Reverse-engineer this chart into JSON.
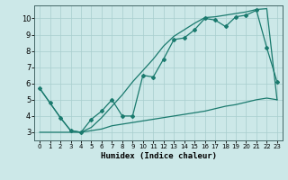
{
  "xlabel": "Humidex (Indice chaleur)",
  "xlim": [
    -0.5,
    23.5
  ],
  "ylim": [
    2.5,
    10.8
  ],
  "xticks": [
    0,
    1,
    2,
    3,
    4,
    5,
    6,
    7,
    8,
    9,
    10,
    11,
    12,
    13,
    14,
    15,
    16,
    17,
    18,
    19,
    20,
    21,
    22,
    23
  ],
  "yticks": [
    3,
    4,
    5,
    6,
    7,
    8,
    9,
    10
  ],
  "bg_color": "#cce8e8",
  "line_color": "#1a7a6e",
  "line1_x": [
    0,
    1,
    2,
    3,
    4,
    5,
    6,
    7,
    8,
    9,
    10,
    11,
    12,
    13,
    14,
    15,
    16,
    17,
    18,
    19,
    20,
    21,
    22,
    23
  ],
  "line1_y": [
    5.7,
    4.8,
    3.9,
    3.1,
    3.0,
    3.8,
    4.3,
    5.0,
    4.0,
    4.0,
    6.5,
    6.4,
    7.5,
    8.7,
    8.8,
    9.3,
    10.0,
    9.9,
    9.5,
    10.1,
    10.2,
    10.5,
    8.2,
    6.1
  ],
  "line2_x": [
    0,
    2,
    3,
    4,
    5,
    6,
    7,
    8,
    9,
    10,
    11,
    12,
    13,
    14,
    15,
    16,
    17,
    18,
    19,
    20,
    21,
    22,
    23
  ],
  "line2_y": [
    3.0,
    3.0,
    3.0,
    3.0,
    3.1,
    3.2,
    3.4,
    3.5,
    3.6,
    3.7,
    3.8,
    3.9,
    4.0,
    4.1,
    4.2,
    4.3,
    4.45,
    4.6,
    4.7,
    4.85,
    5.0,
    5.1,
    5.0
  ],
  "line3_x": [
    0,
    1,
    2,
    3,
    4,
    5,
    6,
    7,
    8,
    9,
    10,
    11,
    12,
    13,
    14,
    15,
    16,
    17,
    18,
    19,
    20,
    21,
    22,
    23
  ],
  "line3_y": [
    5.7,
    4.8,
    3.9,
    3.1,
    3.0,
    3.3,
    3.9,
    4.6,
    5.3,
    6.1,
    6.8,
    7.5,
    8.3,
    8.9,
    9.3,
    9.7,
    10.05,
    10.1,
    10.2,
    10.3,
    10.4,
    10.55,
    10.6,
    5.0
  ]
}
